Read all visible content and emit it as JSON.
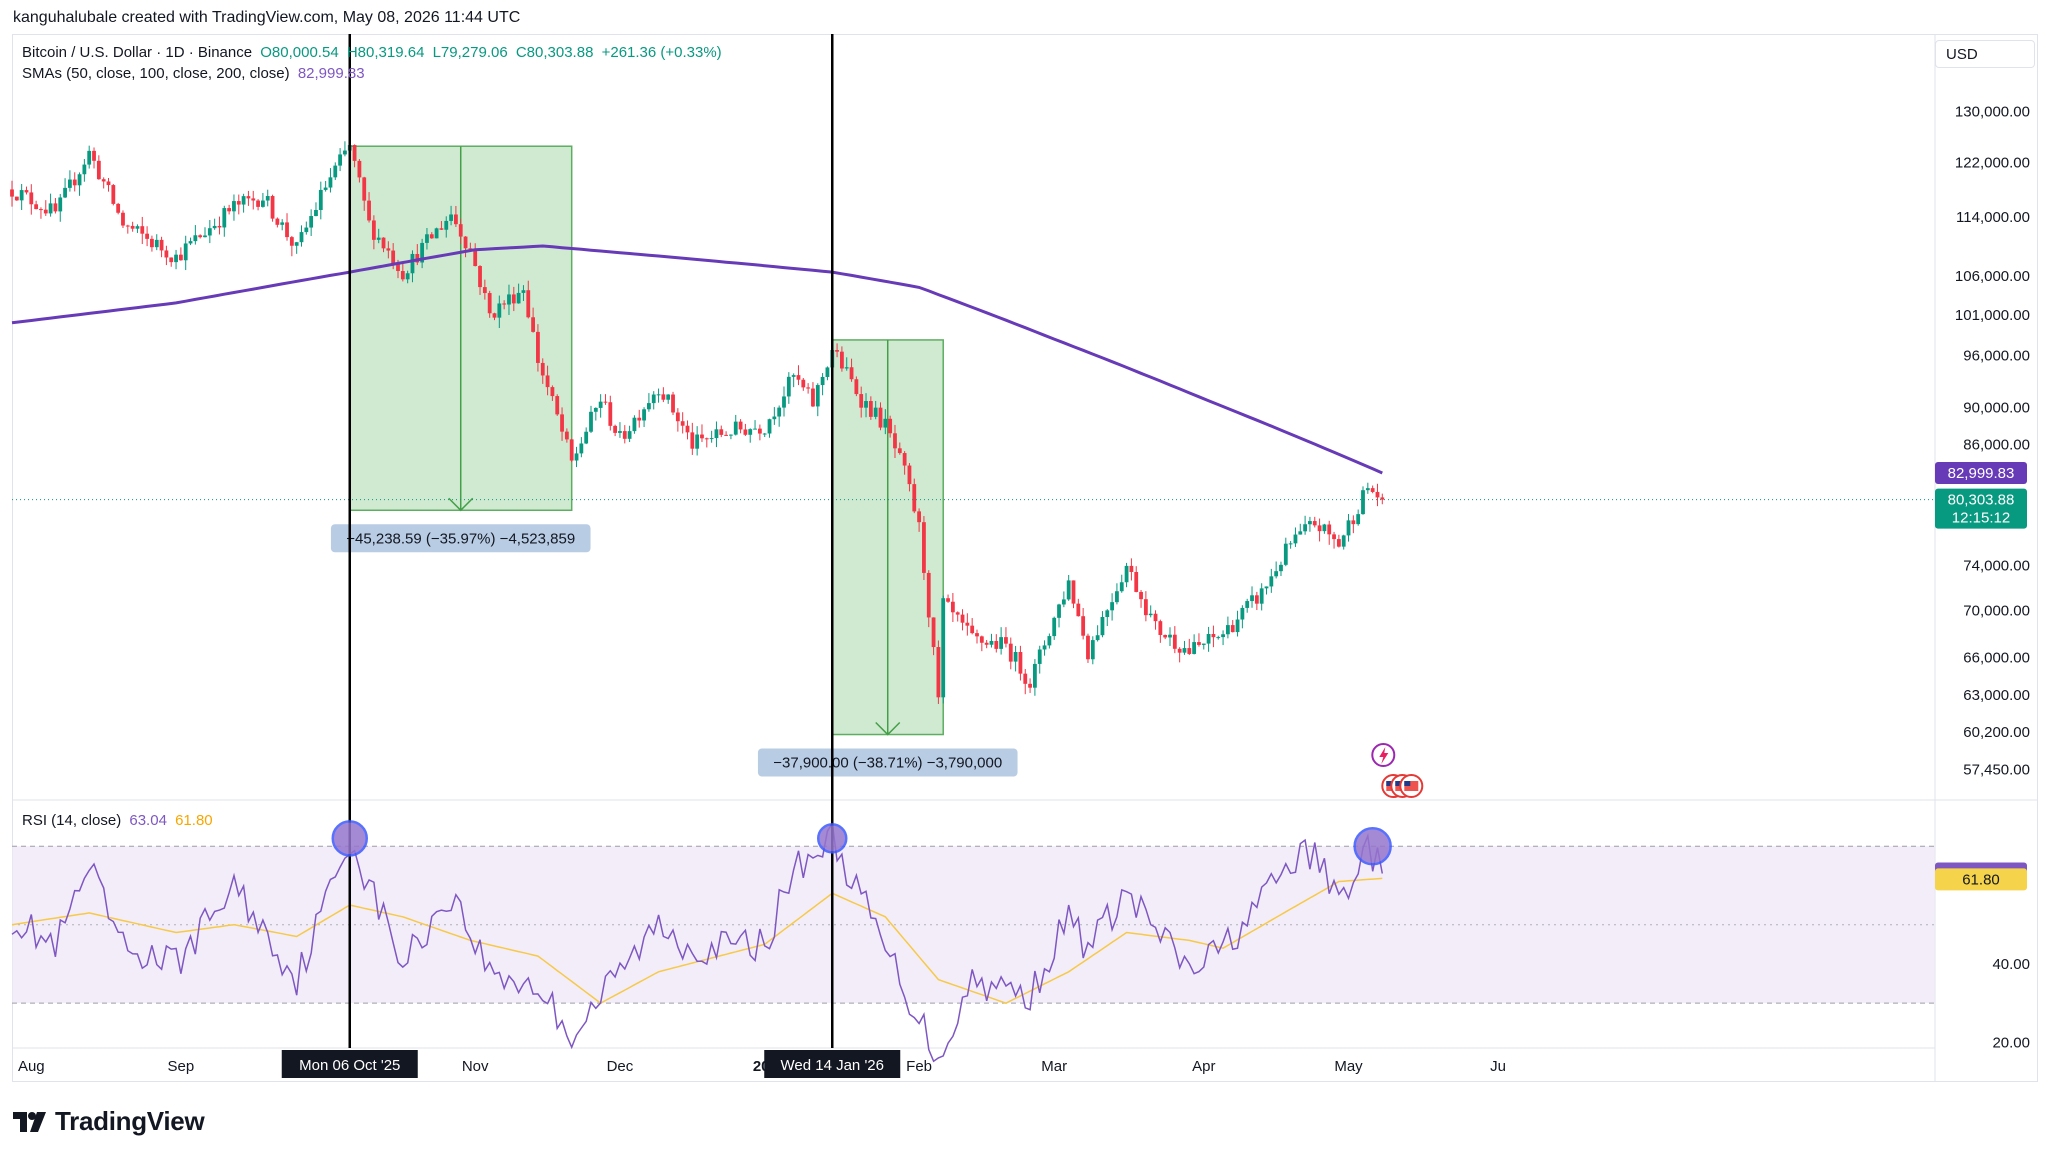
{
  "attribution": "kanguhalubale created with TradingView.com, May 08, 2026 11:44 UTC",
  "legend": {
    "symbol": "Bitcoin / U.S. Dollar · 1D · Binance",
    "open": "O80,000.54",
    "high": "H80,319.64",
    "low": "L79,279.06",
    "close": "C80,303.88",
    "change": "+261.36 (+0.33%)",
    "sma_label": "SMAs (50, close, 100, close, 200, close)",
    "sma_value": "82,999.83",
    "rsi_label": "RSI (14, close)",
    "rsi_value": "63.04",
    "rsi_ma_value": "61.80"
  },
  "currency_button": "USD",
  "logo_text": "TradingView",
  "colors": {
    "up": "#089981",
    "down": "#f23645",
    "sma": "#673ab7",
    "rsi": "#7e57c2",
    "rsi_ma": "#f7c948",
    "measure_fill": "#c8e6c9",
    "measure_stroke": "#43a047",
    "label_bg": "#b8cce4"
  },
  "chart_data": [
    {
      "type": "candlestick",
      "y_scale": "log",
      "ylim": [
        54500,
        133000
      ],
      "y_ticks": [
        "130,000.00",
        "122,000.00",
        "114,000.00",
        "106,000.00",
        "101,000.00",
        "96,000.00",
        "90,000.00",
        "86,000.00",
        "74,000.00",
        "70,000.00",
        "66,000.00",
        "63,000.00",
        "60,200.00",
        "57,450.00"
      ],
      "x_ticks": [
        "Aug",
        "Sep",
        "Nov",
        "Dec",
        "2026",
        "Feb",
        "Mar",
        "Apr",
        "May",
        "Ju"
      ],
      "crosshair_dates": [
        "Mon 06 Oct '25",
        "Wed 14 Jan '26"
      ],
      "price_badges": {
        "sma": "82,999.83",
        "last": "80,303.88",
        "countdown": "12:15:12"
      },
      "last_price": 80303.88,
      "sma_value": 82999.83,
      "closes_anchor": [
        [
          "2025-07-28",
          118000
        ],
        [
          "2025-08-06",
          114500
        ],
        [
          "2025-08-13",
          123500
        ],
        [
          "2025-08-20",
          113000
        ],
        [
          "2025-08-31",
          108500
        ],
        [
          "2025-09-12",
          115500
        ],
        [
          "2025-09-18",
          117000
        ],
        [
          "2025-09-25",
          109500
        ],
        [
          "2025-10-01",
          118500
        ],
        [
          "2025-10-06",
          124500
        ],
        [
          "2025-10-10",
          113000
        ],
        [
          "2025-10-17",
          106500
        ],
        [
          "2025-10-27",
          114500
        ],
        [
          "2025-10-31",
          109500
        ],
        [
          "2025-11-04",
          101000
        ],
        [
          "2025-11-11",
          104500
        ],
        [
          "2025-11-14",
          95500
        ],
        [
          "2025-11-21",
          84000
        ],
        [
          "2025-11-27",
          91000
        ],
        [
          "2025-12-01",
          86500
        ],
        [
          "2025-12-09",
          92500
        ],
        [
          "2025-12-16",
          86000
        ],
        [
          "2025-12-24",
          87500
        ],
        [
          "2025-12-31",
          88000
        ],
        [
          "2026-01-06",
          93500
        ],
        [
          "2026-01-10",
          90500
        ],
        [
          "2026-01-14",
          96800
        ],
        [
          "2026-01-20",
          91000
        ],
        [
          "2026-01-25",
          88000
        ],
        [
          "2026-01-29",
          83000
        ],
        [
          "2026-02-01",
          77500
        ],
        [
          "2026-02-05",
          62500
        ],
        [
          "2026-02-06",
          70500
        ],
        [
          "2026-02-12",
          67500
        ],
        [
          "2026-02-19",
          67000
        ],
        [
          "2026-02-24",
          64000
        ],
        [
          "2026-03-04",
          72500
        ],
        [
          "2026-03-08",
          66500
        ],
        [
          "2026-03-16",
          74000
        ],
        [
          "2026-03-22",
          68500
        ],
        [
          "2026-03-29",
          66500
        ],
        [
          "2026-04-05",
          68000
        ],
        [
          "2026-04-13",
          71500
        ],
        [
          "2026-04-19",
          76000
        ],
        [
          "2026-04-24",
          78000
        ],
        [
          "2026-04-29",
          76000
        ],
        [
          "2026-05-05",
          81500
        ],
        [
          "2026-05-08",
          80303.88
        ]
      ],
      "sma200_anchor": [
        [
          "2025-07-28",
          100000
        ],
        [
          "2025-08-31",
          102500
        ],
        [
          "2025-10-06",
          106500
        ],
        [
          "2025-11-01",
          109500
        ],
        [
          "2025-11-15",
          110000
        ],
        [
          "2025-12-15",
          108300
        ],
        [
          "2026-01-14",
          106500
        ],
        [
          "2026-02-01",
          104500
        ],
        [
          "2026-03-01",
          98000
        ],
        [
          "2026-04-01",
          91000
        ],
        [
          "2026-05-08",
          82999.83
        ]
      ],
      "measurements": [
        {
          "from": "2025-10-06",
          "to": "2025-11-21",
          "top": 124500,
          "bottom": 79250,
          "label": "−45,238.59 (−35.97%) −4,523,859"
        },
        {
          "from": "2026-01-14",
          "to": "2026-02-06",
          "top": 97900,
          "bottom": 60000,
          "label": "−37,900.00 (−38.71%) −3,790,000"
        }
      ]
    },
    {
      "type": "line",
      "title": "RSI (14, close)",
      "ylim": [
        15,
        80
      ],
      "y_ticks": [
        "40.00",
        "20.00"
      ],
      "bands": [
        70,
        30
      ],
      "series": [
        {
          "name": "RSI",
          "last": 63.04,
          "anchor": [
            [
              "2025-07-28",
              52
            ],
            [
              "2025-08-06",
              44
            ],
            [
              "2025-08-13",
              64
            ],
            [
              "2025-08-20",
              44
            ],
            [
              "2025-08-31",
              40
            ],
            [
              "2025-09-12",
              60
            ],
            [
              "2025-09-25",
              36
            ],
            [
              "2025-10-06",
              72
            ],
            [
              "2025-10-17",
              40
            ],
            [
              "2025-10-27",
              58
            ],
            [
              "2025-11-04",
              38
            ],
            [
              "2025-11-14",
              34
            ],
            [
              "2025-11-21",
              22
            ],
            [
              "2025-12-01",
              38
            ],
            [
              "2025-12-09",
              50
            ],
            [
              "2025-12-16",
              44
            ],
            [
              "2025-12-31",
              45
            ],
            [
              "2026-01-06",
              64
            ],
            [
              "2026-01-14",
              72
            ],
            [
              "2026-01-25",
              44
            ],
            [
              "2026-02-05",
              16
            ],
            [
              "2026-02-12",
              36
            ],
            [
              "2026-02-24",
              32
            ],
            [
              "2026-03-04",
              52
            ],
            [
              "2026-03-08",
              44
            ],
            [
              "2026-03-16",
              58
            ],
            [
              "2026-03-29",
              38
            ],
            [
              "2026-04-05",
              44
            ],
            [
              "2026-04-13",
              56
            ],
            [
              "2026-04-19",
              66
            ],
            [
              "2026-04-24",
              68
            ],
            [
              "2026-04-29",
              56
            ],
            [
              "2026-05-05",
              70
            ],
            [
              "2026-05-08",
              63.04
            ]
          ]
        },
        {
          "name": "RSI-based MA",
          "last": 61.8,
          "anchor": [
            [
              "2025-07-28",
              50
            ],
            [
              "2025-08-13",
              53
            ],
            [
              "2025-08-31",
              48
            ],
            [
              "2025-09-12",
              50
            ],
            [
              "2025-09-25",
              47
            ],
            [
              "2025-10-06",
              55
            ],
            [
              "2025-10-17",
              52
            ],
            [
              "2025-10-31",
              46
            ],
            [
              "2025-11-14",
              42
            ],
            [
              "2025-11-27",
              30
            ],
            [
              "2025-12-09",
              38
            ],
            [
              "2025-12-31",
              45
            ],
            [
              "2026-01-14",
              58
            ],
            [
              "2026-01-25",
              52
            ],
            [
              "2026-02-05",
              36
            ],
            [
              "2026-02-19",
              30
            ],
            [
              "2026-03-04",
              38
            ],
            [
              "2026-03-16",
              48
            ],
            [
              "2026-03-29",
              46
            ],
            [
              "2026-04-05",
              44
            ],
            [
              "2026-04-19",
              54
            ],
            [
              "2026-04-29",
              61
            ],
            [
              "2026-05-08",
              61.8
            ]
          ]
        }
      ],
      "badges": {
        "rsi": "63.04",
        "rsi_ma": "61.80"
      }
    }
  ]
}
